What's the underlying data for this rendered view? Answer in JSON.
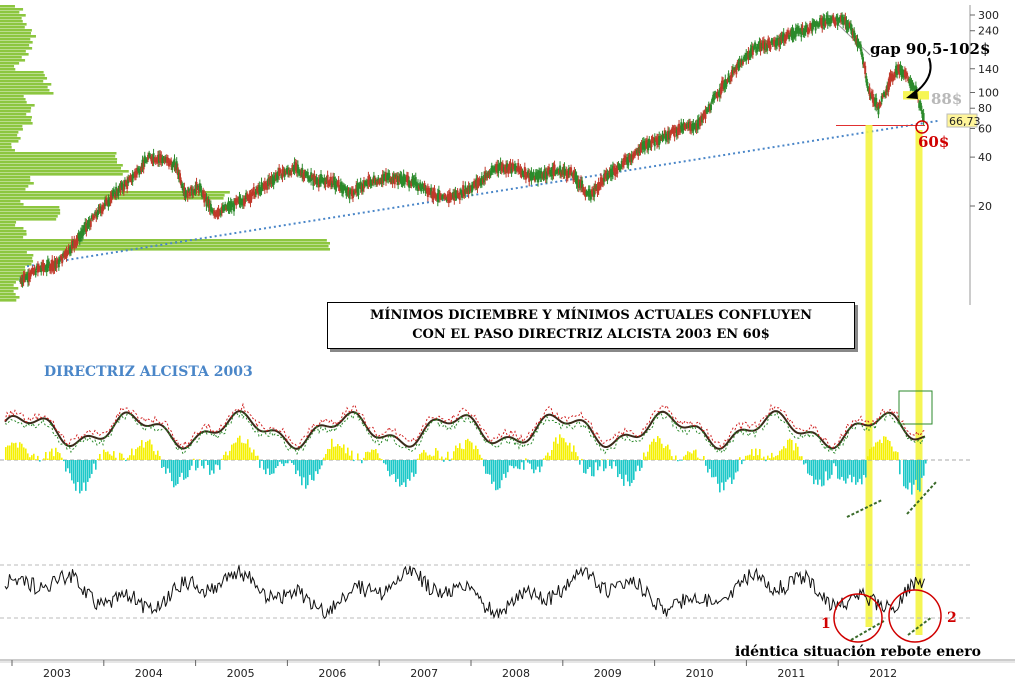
{
  "chart_data": {
    "type": "line",
    "scale": "log",
    "price_axis_ticks": [
      "300",
      "240",
      "140",
      "100",
      "80",
      "60",
      "40",
      "20"
    ],
    "price_axis_tick_values": [
      300,
      240,
      140,
      100,
      80,
      60,
      40,
      20
    ],
    "x_tick_labels": [
      "2003",
      "2004",
      "2005",
      "2006",
      "2007",
      "2008",
      "2009",
      "2010",
      "2011",
      "2012"
    ],
    "last_price_label": "66,73",
    "last_price": 66.73,
    "price_series": {
      "dates": [
        2002.6,
        2002.8,
        2003.0,
        2003.2,
        2003.4,
        2003.6,
        2003.8,
        2004.0,
        2004.15,
        2004.3,
        2004.4,
        2004.55,
        2004.7,
        2004.9,
        2005.1,
        2005.25,
        2005.4,
        2005.6,
        2005.8,
        2006.0,
        2006.2,
        2006.4,
        2006.6,
        2006.8,
        2007.0,
        2007.2,
        2007.4,
        2007.6,
        2007.8,
        2008.0,
        2008.2,
        2008.4,
        2008.6,
        2008.8,
        2009.0,
        2009.2,
        2009.4,
        2009.6,
        2009.8,
        2010.0,
        2010.2,
        2010.4,
        2010.6,
        2010.8,
        2011.0,
        2011.2,
        2011.4,
        2011.55,
        2011.65,
        2011.75,
        2011.85,
        2011.95,
        2012.05,
        2012.15,
        2012.25,
        2012.35,
        2012.45
      ],
      "values": [
        7,
        8.2,
        8.8,
        12,
        17,
        23,
        29,
        40,
        39,
        35,
        24,
        26,
        18,
        20,
        23,
        26,
        31,
        34,
        29,
        28,
        24,
        28,
        30,
        29,
        26,
        22,
        24,
        28,
        35,
        34,
        30,
        33,
        32,
        23,
        31,
        38,
        47,
        54,
        60,
        64,
        100,
        140,
        190,
        200,
        230,
        250,
        280,
        280,
        250,
        190,
        100,
        80,
        110,
        140,
        130,
        105,
        66.73
      ]
    },
    "trendline_2003": {
      "from": {
        "date": 2003.0,
        "value": 9.8
      },
      "to": {
        "date": 2012.55,
        "value": 67
      }
    },
    "horizontal_support": 60,
    "gap_zone": [
      90.5,
      102
    ],
    "indicators": [
      "oscillator-with-histogram",
      "momentum-oscillator"
    ],
    "annotations": [
      {
        "id": "gap",
        "text": "gap 90,5-102$",
        "color": "#000000"
      },
      {
        "id": "target88",
        "text": "88$",
        "color": "#b8b8b8"
      },
      {
        "id": "support60",
        "text": "60$",
        "color": "#d00000"
      },
      {
        "id": "trend",
        "text": "DIRECTRIZ ALCISTA 2003",
        "color": "#4a86c8"
      },
      {
        "id": "rebote",
        "text": "idéntica situación rebote enero",
        "color": "#000000"
      },
      {
        "id": "mark1",
        "text": "1",
        "color": "#d00000"
      },
      {
        "id": "mark2",
        "text": "2",
        "color": "#d00000"
      }
    ],
    "callout": {
      "line1": "MÍNIMOS DICIEMBRE Y MÍNIMOS ACTUALES CONFLUYEN",
      "line2": "CON EL PASO DIRECTRIZ ALCISTA 2003 EN 60$"
    },
    "colors": {
      "candles_up": "#2b8a2b",
      "candles_down": "#c0392b",
      "volume_profile": "#8cc63f",
      "trendline": "#4a86c8",
      "support": "#e03030",
      "highlight_yellow": "#f5f542",
      "hist_positive": "#f5f000",
      "hist_negative": "#1cc8c8"
    }
  }
}
